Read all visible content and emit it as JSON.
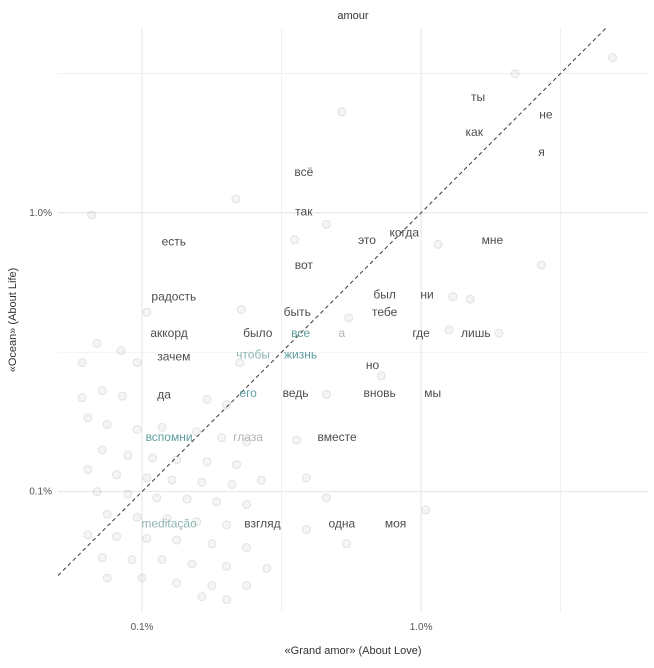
{
  "chart_data": {
    "type": "scatter",
    "title": "amour",
    "xlabel": "«Grand amor» (About Love)",
    "ylabel": "«Ocean» (About Life)",
    "x_scale": "log",
    "y_scale": "log",
    "x_range": [
      0.05,
      6.5
    ],
    "y_range": [
      0.037,
      4.6
    ],
    "x_ticks": [
      {
        "value": 0.1,
        "label": "0.1%"
      },
      {
        "value": 1.0,
        "label": "1.0%"
      }
    ],
    "y_ticks": [
      {
        "value": 0.1,
        "label": "0.1%"
      },
      {
        "value": 1.0,
        "label": "1.0%"
      }
    ],
    "x_minor": [
      0.316,
      3.16
    ],
    "y_minor": [
      0.316,
      3.16
    ],
    "grid": true,
    "legend": "none",
    "identity_line": {
      "style": "dashed",
      "from": "bottom-left",
      "to": "top-right"
    },
    "colors": {
      "dark": "#4d4d4d",
      "teal": "#5f9ea0",
      "teal_light": "#8fb5b2",
      "light": "#b3b3b3",
      "tick": "#555555",
      "grid_major": "#e4e4e4",
      "grid_minor": "#f1f1f1",
      "line": "#3a3a3a",
      "point_fill": "rgba(130,130,130,0.08)",
      "point_stroke": "rgba(130,130,130,0.20)"
    },
    "words": [
      {
        "text": "ты",
        "x": 1.6,
        "y": 2.6,
        "color": "dark"
      },
      {
        "text": "не",
        "x": 2.8,
        "y": 2.25,
        "color": "dark"
      },
      {
        "text": "как",
        "x": 1.55,
        "y": 1.95,
        "color": "dark"
      },
      {
        "text": "я",
        "x": 2.7,
        "y": 1.65,
        "color": "dark"
      },
      {
        "text": "всё",
        "x": 0.38,
        "y": 1.4,
        "color": "dark"
      },
      {
        "text": "так",
        "x": 0.38,
        "y": 1.01,
        "color": "dark"
      },
      {
        "text": "есть",
        "x": 0.13,
        "y": 0.79,
        "color": "dark"
      },
      {
        "text": "это",
        "x": 0.64,
        "y": 0.8,
        "color": "dark"
      },
      {
        "text": "когда",
        "x": 0.87,
        "y": 0.85,
        "color": "dark"
      },
      {
        "text": "мне",
        "x": 1.8,
        "y": 0.8,
        "color": "dark"
      },
      {
        "text": "вот",
        "x": 0.38,
        "y": 0.65,
        "color": "dark"
      },
      {
        "text": "радость",
        "x": 0.13,
        "y": 0.5,
        "color": "dark"
      },
      {
        "text": "был",
        "x": 0.74,
        "y": 0.51,
        "color": "dark"
      },
      {
        "text": "ни",
        "x": 1.05,
        "y": 0.51,
        "color": "dark"
      },
      {
        "text": "быть",
        "x": 0.36,
        "y": 0.44,
        "color": "dark"
      },
      {
        "text": "тебе",
        "x": 0.74,
        "y": 0.44,
        "color": "dark"
      },
      {
        "text": "аккорд",
        "x": 0.125,
        "y": 0.37,
        "color": "dark"
      },
      {
        "text": "было",
        "x": 0.26,
        "y": 0.37,
        "color": "dark"
      },
      {
        "text": "все",
        "x": 0.37,
        "y": 0.37,
        "color": "teal"
      },
      {
        "text": "а",
        "x": 0.52,
        "y": 0.37,
        "color": "light"
      },
      {
        "text": "где",
        "x": 1.0,
        "y": 0.37,
        "color": "dark"
      },
      {
        "text": "лишь",
        "x": 1.57,
        "y": 0.37,
        "color": "dark"
      },
      {
        "text": "зачем",
        "x": 0.13,
        "y": 0.305,
        "color": "dark"
      },
      {
        "text": "чтобы",
        "x": 0.25,
        "y": 0.31,
        "color": "teal_light"
      },
      {
        "text": "жизнь",
        "x": 0.37,
        "y": 0.31,
        "color": "teal"
      },
      {
        "text": "но",
        "x": 0.67,
        "y": 0.285,
        "color": "dark"
      },
      {
        "text": "да",
        "x": 0.12,
        "y": 0.223,
        "color": "dark"
      },
      {
        "text": "его",
        "x": 0.24,
        "y": 0.226,
        "color": "teal"
      },
      {
        "text": "ведь",
        "x": 0.355,
        "y": 0.226,
        "color": "dark"
      },
      {
        "text": "вновь",
        "x": 0.71,
        "y": 0.226,
        "color": "dark"
      },
      {
        "text": "мы",
        "x": 1.1,
        "y": 0.226,
        "color": "dark"
      },
      {
        "text": "вспомни",
        "x": 0.125,
        "y": 0.157,
        "color": "teal"
      },
      {
        "text": "глаза",
        "x": 0.24,
        "y": 0.157,
        "color": "light"
      },
      {
        "text": "вместе",
        "x": 0.5,
        "y": 0.157,
        "color": "dark"
      },
      {
        "text": "meditação",
        "x": 0.125,
        "y": 0.077,
        "color": "teal_light"
      },
      {
        "text": "взгляд",
        "x": 0.27,
        "y": 0.077,
        "color": "dark"
      },
      {
        "text": "одна",
        "x": 0.52,
        "y": 0.077,
        "color": "dark"
      },
      {
        "text": "моя",
        "x": 0.81,
        "y": 0.077,
        "color": "dark"
      }
    ],
    "points": [
      [
        4.85,
        3.6
      ],
      [
        2.17,
        3.15
      ],
      [
        0.52,
        2.3
      ],
      [
        0.217,
        1.12
      ],
      [
        0.066,
        0.98
      ],
      [
        0.352,
        0.8
      ],
      [
        0.458,
        0.91
      ],
      [
        1.15,
        0.77
      ],
      [
        2.7,
        0.65
      ],
      [
        1.3,
        0.5
      ],
      [
        1.5,
        0.49
      ],
      [
        0.104,
        0.44
      ],
      [
        0.227,
        0.45
      ],
      [
        0.55,
        0.42
      ],
      [
        1.26,
        0.38
      ],
      [
        1.9,
        0.37
      ],
      [
        0.069,
        0.34
      ],
      [
        0.084,
        0.32
      ],
      [
        0.061,
        0.29
      ],
      [
        0.096,
        0.29
      ],
      [
        0.224,
        0.29
      ],
      [
        0.72,
        0.26
      ],
      [
        0.072,
        0.23
      ],
      [
        0.085,
        0.22
      ],
      [
        0.061,
        0.217
      ],
      [
        0.171,
        0.214
      ],
      [
        0.201,
        0.205
      ],
      [
        0.458,
        0.223
      ],
      [
        0.064,
        0.184
      ],
      [
        0.075,
        0.174
      ],
      [
        0.096,
        0.167
      ],
      [
        0.118,
        0.17
      ],
      [
        0.157,
        0.164
      ],
      [
        0.193,
        0.156
      ],
      [
        0.237,
        0.151
      ],
      [
        0.358,
        0.153
      ],
      [
        0.072,
        0.141
      ],
      [
        0.089,
        0.135
      ],
      [
        0.109,
        0.132
      ],
      [
        0.133,
        0.13
      ],
      [
        0.171,
        0.128
      ],
      [
        0.218,
        0.125
      ],
      [
        0.064,
        0.12
      ],
      [
        0.081,
        0.115
      ],
      [
        0.104,
        0.112
      ],
      [
        0.128,
        0.11
      ],
      [
        0.164,
        0.108
      ],
      [
        0.21,
        0.106
      ],
      [
        0.268,
        0.11
      ],
      [
        0.388,
        0.112
      ],
      [
        0.069,
        0.1
      ],
      [
        0.089,
        0.098
      ],
      [
        0.113,
        0.095
      ],
      [
        0.145,
        0.094
      ],
      [
        0.185,
        0.092
      ],
      [
        0.237,
        0.09
      ],
      [
        0.458,
        0.095
      ],
      [
        1.04,
        0.086
      ],
      [
        0.075,
        0.083
      ],
      [
        0.096,
        0.081
      ],
      [
        0.123,
        0.08
      ],
      [
        0.157,
        0.078
      ],
      [
        0.201,
        0.076
      ],
      [
        0.388,
        0.073
      ],
      [
        0.064,
        0.07
      ],
      [
        0.081,
        0.069
      ],
      [
        0.104,
        0.068
      ],
      [
        0.133,
        0.067
      ],
      [
        0.178,
        0.065
      ],
      [
        0.237,
        0.063
      ],
      [
        0.54,
        0.065
      ],
      [
        0.072,
        0.058
      ],
      [
        0.092,
        0.057
      ],
      [
        0.118,
        0.057
      ],
      [
        0.151,
        0.055
      ],
      [
        0.201,
        0.054
      ],
      [
        0.28,
        0.053
      ],
      [
        0.075,
        0.049
      ],
      [
        0.1,
        0.049
      ],
      [
        0.133,
        0.047
      ],
      [
        0.178,
        0.046
      ],
      [
        0.237,
        0.046
      ],
      [
        0.164,
        0.042
      ],
      [
        0.201,
        0.041
      ]
    ]
  }
}
